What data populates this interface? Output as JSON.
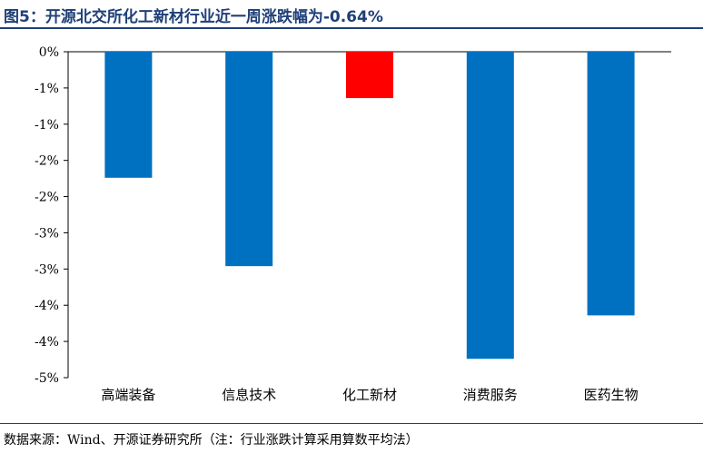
{
  "title": "图5：开源北交所化工新材行业近一周涨跌幅为-0.64%",
  "source": "数据来源：Wind、开源证券研究所（注：行业涨跌计算采用算数平均法）",
  "colors": {
    "title": "#1f3f78",
    "bar_default": "#0070c0",
    "bar_highlight": "#ff0000"
  },
  "chart_data": {
    "type": "bar",
    "categories": [
      "高端装备",
      "信息技术",
      "化工新材",
      "消费服务",
      "医药生物"
    ],
    "values": [
      -1.74,
      -2.96,
      -0.64,
      -4.24,
      -3.64
    ],
    "highlight": "化工新材",
    "yticks": [
      "0%",
      "-1%",
      "-1%",
      "-2%",
      "-2%",
      "-3%",
      "-3%",
      "-4%",
      "-4%",
      "-5%"
    ],
    "ylim": [
      -4.5,
      0
    ],
    "title": "",
    "xlabel": "",
    "ylabel": "",
    "grid": false,
    "legend": "none"
  }
}
